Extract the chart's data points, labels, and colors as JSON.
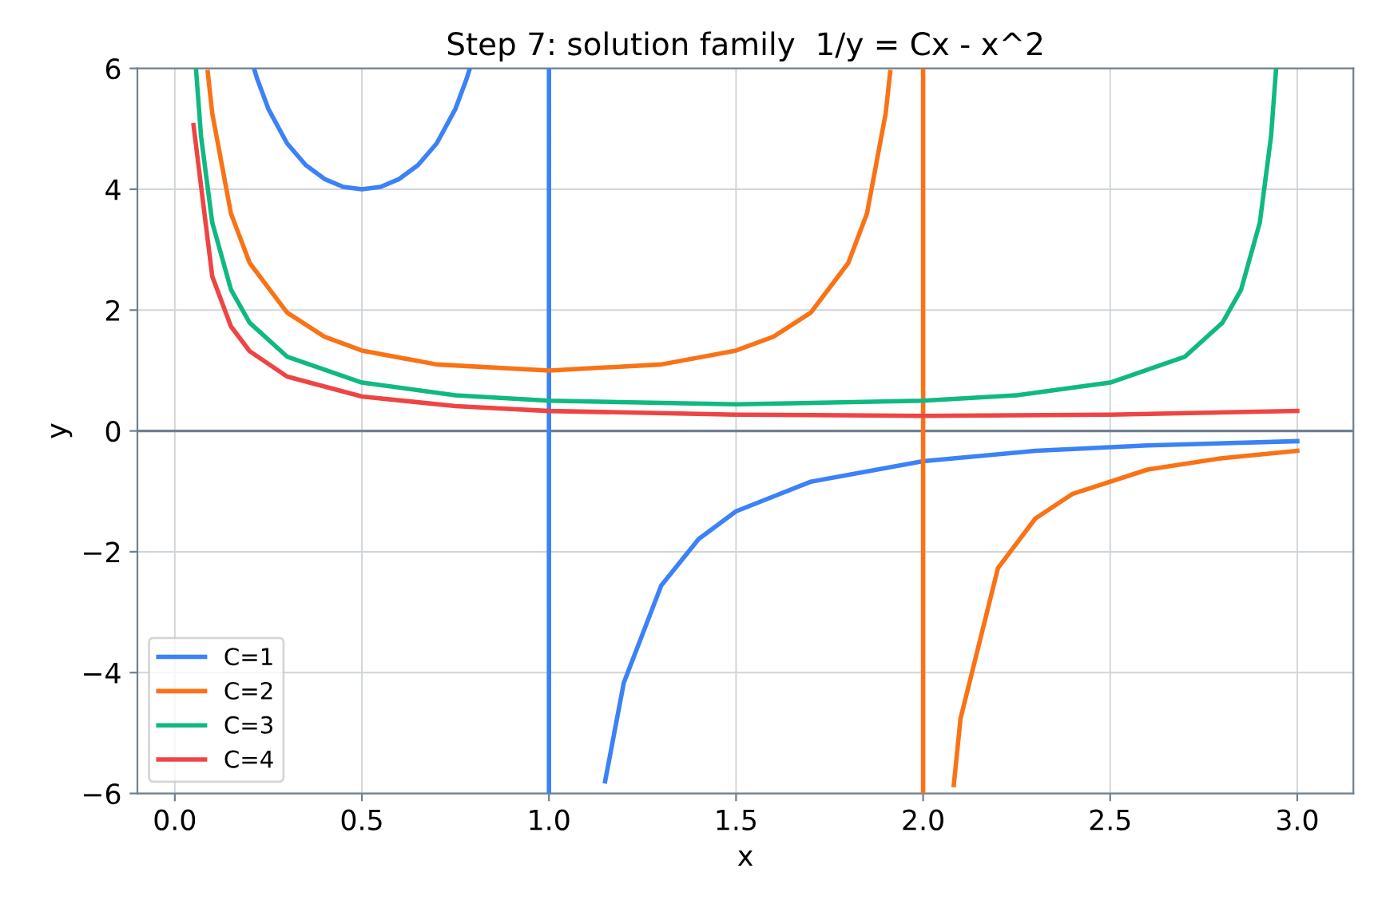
{
  "chart_data": {
    "type": "line",
    "title": "Step 7: solution family  1/y = Cx - x^2",
    "xlabel": "x",
    "ylabel": "y",
    "xlim": [
      -0.1,
      3.15
    ],
    "xticks": [
      {
        "value": 0,
        "label": "0.0"
      },
      0.5,
      {
        "value": 1,
        "label": "1.0"
      },
      1.5,
      {
        "value": 2,
        "label": "2.0"
      },
      2.5,
      {
        "value": 3,
        "label": "3.0"
      }
    ],
    "ylim": [
      -6,
      6
    ],
    "yticks": [
      {
        "value": -6,
        "label": "−6"
      },
      {
        "value": -4,
        "label": "−4"
      },
      {
        "value": -2,
        "label": "−2"
      },
      0,
      2,
      4,
      6
    ],
    "grid": true,
    "legend": "bottom left",
    "line_style": "solid",
    "marker": "none",
    "ref_lines": [
      {
        "axis": "y",
        "value": 0,
        "label": null,
        "color": "#708090"
      }
    ],
    "series": [
      {
        "name": "C=1",
        "color": "#3b82f6",
        "x": [
          0.213,
          0.22,
          0.25,
          0.3,
          0.35,
          0.4,
          0.45,
          0.5,
          0.55,
          0.6,
          0.65,
          0.7,
          0.75,
          0.78,
          0.787,
          0.9,
          1.0,
          1.0,
          1.1,
          1.15,
          1.2,
          1.3,
          1.4,
          1.5,
          1.7,
          2.0,
          2.3,
          2.6,
          3.0
        ],
        "values": [
          5.97,
          5.83,
          5.33,
          4.76,
          4.4,
          4.17,
          4.04,
          4.0,
          4.04,
          4.17,
          4.4,
          4.76,
          5.33,
          5.83,
          5.97,
          null,
          6,
          -6,
          null,
          -5.8,
          -4.17,
          -2.56,
          -1.79,
          -1.33,
          -0.84,
          -0.5,
          -0.33,
          -0.24,
          -0.17
        ]
      },
      {
        "name": "C=2",
        "color": "#f97316",
        "x": [
          0.088,
          0.1,
          0.15,
          0.2,
          0.3,
          0.4,
          0.5,
          0.7,
          1.0,
          1.3,
          1.5,
          1.6,
          1.7,
          1.8,
          1.85,
          1.9,
          1.912,
          1.95,
          2.0,
          2.0,
          2.05,
          2.082,
          2.1,
          2.2,
          2.3,
          2.4,
          2.6,
          2.8,
          3.0
        ],
        "values": [
          5.94,
          5.26,
          3.6,
          2.78,
          1.96,
          1.56,
          1.33,
          1.1,
          1.0,
          1.1,
          1.33,
          1.56,
          1.96,
          2.78,
          3.6,
          5.26,
          5.94,
          null,
          6,
          -6,
          null,
          -5.86,
          -4.76,
          -2.27,
          -1.45,
          -1.04,
          -0.64,
          -0.45,
          -0.33
        ]
      },
      {
        "name": "C=3",
        "color": "#10b981",
        "x": [
          0.057,
          0.07,
          0.1,
          0.15,
          0.2,
          0.3,
          0.5,
          0.75,
          1.0,
          1.5,
          2.0,
          2.25,
          2.5,
          2.7,
          2.8,
          2.85,
          2.9,
          2.93,
          2.943
        ],
        "values": [
          5.96,
          4.88,
          3.45,
          2.34,
          1.79,
          1.23,
          0.8,
          0.59,
          0.5,
          0.44,
          0.5,
          0.59,
          0.8,
          1.23,
          1.79,
          2.34,
          3.45,
          4.88,
          5.96
        ]
      },
      {
        "name": "C=4",
        "color": "#ef4444",
        "x": [
          0.05,
          0.1,
          0.15,
          0.2,
          0.3,
          0.5,
          0.75,
          1.0,
          1.5,
          2.0,
          2.5,
          3.0
        ],
        "values": [
          5.06,
          2.56,
          1.73,
          1.32,
          0.9,
          0.57,
          0.41,
          0.33,
          0.27,
          0.25,
          0.27,
          0.33
        ]
      }
    ]
  }
}
